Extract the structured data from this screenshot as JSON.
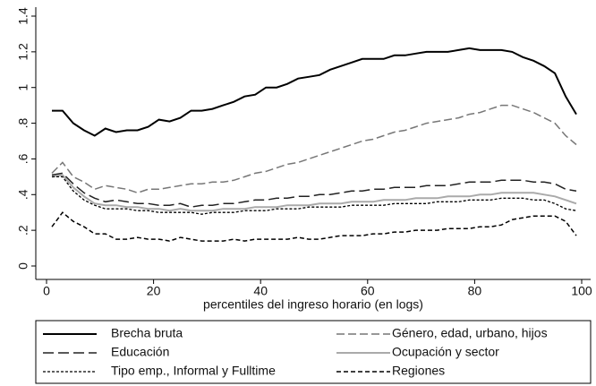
{
  "chart_data": {
    "type": "line",
    "xlabel": "percentiles del ingreso horario (en logs)",
    "xlim": [
      0,
      100
    ],
    "xticks": [
      0,
      20,
      40,
      60,
      80,
      100
    ],
    "ylim": [
      0,
      1.4
    ],
    "yticks": [
      0,
      {
        "value": 0.2,
        "label": ".2"
      },
      {
        "value": 0.4,
        "label": ".4"
      },
      {
        "value": 0.6,
        "label": ".6"
      },
      {
        "value": 0.8,
        "label": ".8"
      },
      1,
      1.2,
      1.4
    ],
    "x": [
      1,
      3,
      5,
      7,
      9,
      11,
      13,
      15,
      17,
      19,
      21,
      23,
      25,
      27,
      29,
      31,
      33,
      35,
      37,
      39,
      41,
      43,
      45,
      47,
      49,
      51,
      53,
      55,
      57,
      59,
      61,
      63,
      65,
      67,
      69,
      71,
      73,
      75,
      77,
      79,
      81,
      83,
      85,
      87,
      89,
      91,
      93,
      95,
      97,
      99
    ],
    "series": [
      {
        "name": "Brecha bruta",
        "color": "#000000",
        "dash": "none",
        "width": 2,
        "values": [
          0.87,
          0.87,
          0.8,
          0.76,
          0.73,
          0.77,
          0.75,
          0.76,
          0.76,
          0.78,
          0.82,
          0.81,
          0.83,
          0.87,
          0.87,
          0.88,
          0.9,
          0.92,
          0.95,
          0.96,
          1.0,
          1.0,
          1.02,
          1.05,
          1.06,
          1.07,
          1.1,
          1.12,
          1.14,
          1.16,
          1.16,
          1.16,
          1.18,
          1.18,
          1.19,
          1.2,
          1.2,
          1.2,
          1.21,
          1.22,
          1.21,
          1.21,
          1.21,
          1.2,
          1.17,
          1.15,
          1.12,
          1.08,
          0.95,
          0.85
        ]
      },
      {
        "name": "Género, edad, urbano, hijos",
        "color": "#777777",
        "dash": "9 4",
        "width": 1.5,
        "values": [
          0.52,
          0.58,
          0.5,
          0.47,
          0.43,
          0.45,
          0.44,
          0.43,
          0.41,
          0.43,
          0.43,
          0.44,
          0.45,
          0.46,
          0.46,
          0.47,
          0.47,
          0.48,
          0.5,
          0.52,
          0.53,
          0.55,
          0.57,
          0.58,
          0.6,
          0.62,
          0.64,
          0.66,
          0.68,
          0.7,
          0.71,
          0.73,
          0.75,
          0.76,
          0.78,
          0.8,
          0.81,
          0.82,
          0.83,
          0.85,
          0.86,
          0.88,
          0.9,
          0.9,
          0.88,
          0.86,
          0.83,
          0.8,
          0.73,
          0.68
        ]
      },
      {
        "name": "Educación",
        "color": "#222222",
        "dash": "12 5",
        "width": 1.5,
        "values": [
          0.51,
          0.52,
          0.46,
          0.41,
          0.38,
          0.36,
          0.37,
          0.36,
          0.35,
          0.35,
          0.34,
          0.34,
          0.35,
          0.33,
          0.34,
          0.34,
          0.35,
          0.35,
          0.36,
          0.37,
          0.37,
          0.38,
          0.38,
          0.39,
          0.39,
          0.4,
          0.4,
          0.41,
          0.42,
          0.42,
          0.43,
          0.43,
          0.44,
          0.44,
          0.44,
          0.45,
          0.45,
          0.45,
          0.46,
          0.47,
          0.47,
          0.47,
          0.48,
          0.48,
          0.48,
          0.47,
          0.47,
          0.46,
          0.43,
          0.42
        ]
      },
      {
        "name": "Ocupación y sector",
        "color": "#aaaaaa",
        "dash": "none",
        "width": 2,
        "values": [
          0.5,
          0.51,
          0.44,
          0.39,
          0.35,
          0.34,
          0.34,
          0.33,
          0.33,
          0.32,
          0.32,
          0.31,
          0.32,
          0.31,
          0.31,
          0.31,
          0.32,
          0.32,
          0.32,
          0.33,
          0.33,
          0.33,
          0.34,
          0.34,
          0.34,
          0.35,
          0.35,
          0.35,
          0.36,
          0.36,
          0.36,
          0.37,
          0.37,
          0.37,
          0.38,
          0.38,
          0.38,
          0.39,
          0.39,
          0.39,
          0.4,
          0.4,
          0.41,
          0.41,
          0.41,
          0.41,
          0.4,
          0.39,
          0.37,
          0.35
        ]
      },
      {
        "name": "Tipo emp., Informal y Fulltime",
        "color": "#000000",
        "dash": "3 2",
        "width": 1.3,
        "values": [
          0.5,
          0.5,
          0.42,
          0.37,
          0.34,
          0.32,
          0.32,
          0.32,
          0.31,
          0.31,
          0.3,
          0.3,
          0.3,
          0.3,
          0.29,
          0.3,
          0.3,
          0.3,
          0.31,
          0.31,
          0.31,
          0.32,
          0.32,
          0.32,
          0.33,
          0.33,
          0.33,
          0.33,
          0.34,
          0.34,
          0.34,
          0.34,
          0.35,
          0.35,
          0.35,
          0.35,
          0.36,
          0.36,
          0.36,
          0.37,
          0.37,
          0.37,
          0.38,
          0.38,
          0.38,
          0.37,
          0.37,
          0.35,
          0.32,
          0.31
        ]
      },
      {
        "name": "Regiones",
        "color": "#000000",
        "dash": "5 3",
        "width": 1.5,
        "values": [
          0.22,
          0.3,
          0.25,
          0.22,
          0.18,
          0.18,
          0.15,
          0.15,
          0.16,
          0.15,
          0.15,
          0.14,
          0.16,
          0.15,
          0.14,
          0.14,
          0.14,
          0.15,
          0.14,
          0.15,
          0.15,
          0.15,
          0.15,
          0.16,
          0.15,
          0.15,
          0.16,
          0.17,
          0.17,
          0.17,
          0.18,
          0.18,
          0.19,
          0.19,
          0.2,
          0.2,
          0.2,
          0.21,
          0.21,
          0.21,
          0.22,
          0.22,
          0.23,
          0.26,
          0.27,
          0.28,
          0.28,
          0.28,
          0.25,
          0.17
        ]
      }
    ]
  }
}
